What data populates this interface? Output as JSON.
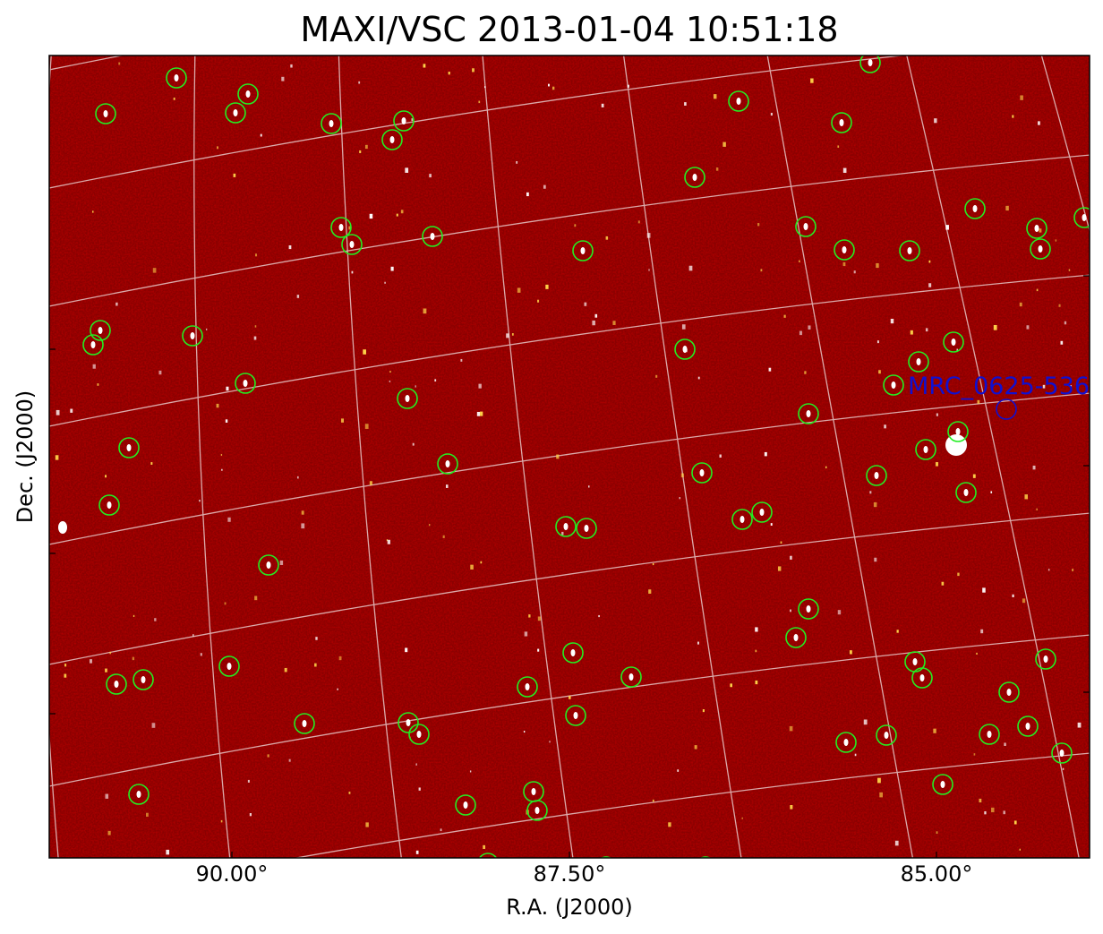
{
  "title": "MAXI/VSC 2013-01-04 10:51:18",
  "x_axis": {
    "label": "R.A. (J2000)",
    "tick_labels": [
      "90.00°",
      "87.50°",
      "85.00°"
    ]
  },
  "y_axis": {
    "label": "Dec. (J2000)"
  },
  "annotation": "MRC_0625-536"
}
